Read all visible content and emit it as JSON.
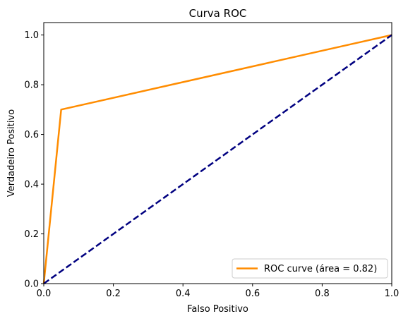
{
  "chart_data": {
    "type": "line",
    "title": "Curva ROC",
    "xlabel": "Falso Positivo",
    "ylabel": "Verdadeiro Positivo",
    "xlim": [
      0.0,
      1.0
    ],
    "ylim": [
      0.0,
      1.05
    ],
    "xticks": [
      "0.0",
      "0.2",
      "0.4",
      "0.6",
      "0.8",
      "1.0"
    ],
    "yticks": [
      "0.0",
      "0.2",
      "0.4",
      "0.6",
      "0.8",
      "1.0"
    ],
    "grid": false,
    "legend_position": "lower-right",
    "series": [
      {
        "name": "ROC curve (área = 0.82)",
        "color": "#ff8c00",
        "style": "solid",
        "x": [
          0.0,
          0.05,
          1.0
        ],
        "y": [
          0.0,
          0.7,
          1.0
        ]
      },
      {
        "color": "#000080",
        "style": "dashed",
        "x": [
          0.0,
          1.0
        ],
        "y": [
          0.0,
          1.0
        ]
      }
    ]
  }
}
